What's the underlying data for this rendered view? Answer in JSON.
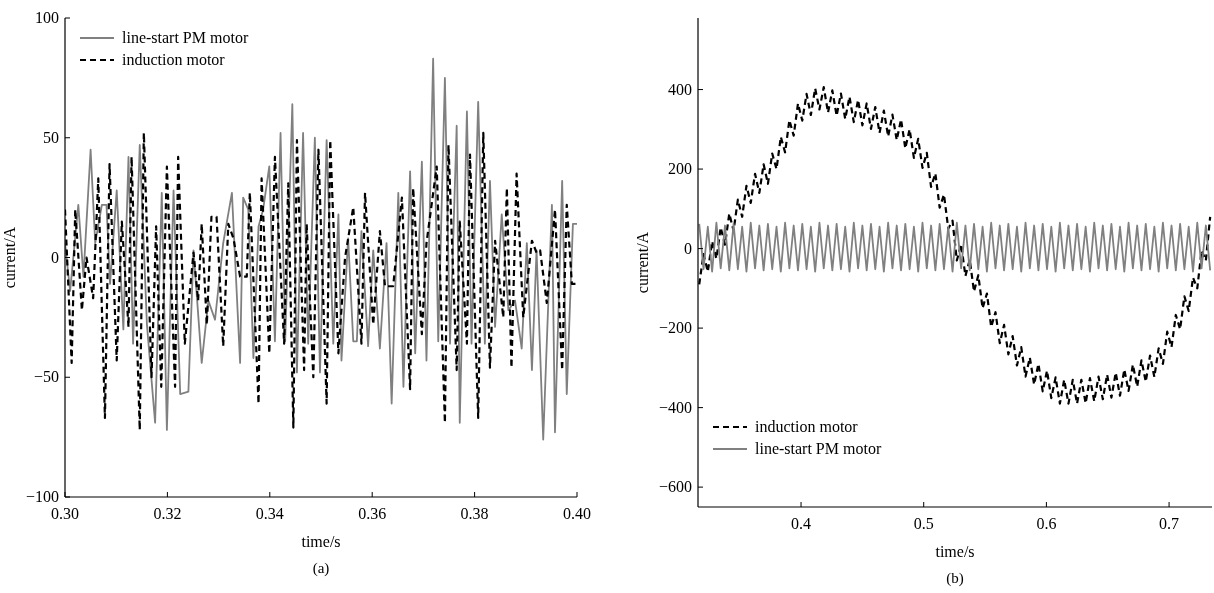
{
  "chart_data": [
    {
      "type": "line",
      "xlabel": "time/s",
      "ylabel": "current/A",
      "annotations": [
        "(a)"
      ],
      "xlim": [
        0.3,
        0.4
      ],
      "ylim": [
        -100,
        100
      ],
      "xticks": [
        {
          "value": 0.3,
          "label": "0.30"
        },
        {
          "value": 0.32,
          "label": "0.32"
        },
        {
          "value": 0.34,
          "label": "0.34"
        },
        {
          "value": 0.36,
          "label": "0.36"
        },
        {
          "value": 0.38,
          "label": "0.38"
        },
        {
          "value": 0.4,
          "label": "0.40"
        }
      ],
      "yticks": [
        -100,
        -50,
        0,
        50,
        100
      ],
      "legend": "top left",
      "grid": false,
      "series": [
        {
          "name": "line-start PM motor",
          "color": "#808080",
          "line_style": "solid",
          "x": [
            0.3,
            0.301,
            0.3026,
            0.3036,
            0.305,
            0.3059,
            0.3072,
            0.3081,
            0.3088,
            0.3101,
            0.3114,
            0.3124,
            0.3133,
            0.3146,
            0.316,
            0.3176,
            0.3189,
            0.3199,
            0.3212,
            0.3225,
            0.3241,
            0.3251,
            0.3267,
            0.328,
            0.3293,
            0.3309,
            0.3326,
            0.3342,
            0.3348,
            0.3358,
            0.3368,
            0.3378,
            0.3387,
            0.3399,
            0.341,
            0.3421,
            0.343,
            0.3444,
            0.3453,
            0.3465,
            0.3475,
            0.3488,
            0.3498,
            0.3511,
            0.3524,
            0.3534,
            0.354,
            0.3553,
            0.3563,
            0.357,
            0.3579,
            0.3592,
            0.3602,
            0.3615,
            0.3628,
            0.3638,
            0.3651,
            0.3661,
            0.3674,
            0.3684,
            0.3697,
            0.3706,
            0.3719,
            0.3729,
            0.3742,
            0.3752,
            0.3765,
            0.3771,
            0.3785,
            0.3794,
            0.3807,
            0.382,
            0.383,
            0.384,
            0.3853,
            0.3866,
            0.3879,
            0.3892,
            0.3902,
            0.3912,
            0.3921,
            0.3934,
            0.3951,
            0.3957,
            0.3971,
            0.398,
            0.3992,
            0.4
          ],
          "values": [
            6,
            -14,
            22,
            -8,
            45,
            6,
            22,
            22,
            -11,
            28,
            -30,
            42,
            -36,
            47,
            -28,
            -69,
            27,
            -72,
            28,
            -57,
            -56,
            3,
            -44,
            -18,
            -26,
            6,
            27,
            -44,
            25,
            20,
            -42,
            13,
            20,
            38,
            -35,
            52,
            -35,
            64,
            -48,
            52,
            -36,
            50,
            -48,
            49,
            -36,
            18,
            -43,
            8,
            -35,
            -35,
            11,
            -37,
            3,
            -38,
            6,
            -61,
            27,
            -54,
            36,
            -40,
            40,
            -43,
            83,
            -35,
            75,
            -36,
            55,
            -69,
            61,
            -36,
            65,
            -36,
            32,
            -29,
            18,
            -22,
            -18,
            -38,
            6,
            -47,
            3,
            -76,
            22,
            -73,
            32,
            -57,
            14,
            14
          ]
        },
        {
          "name": "induction motor",
          "color": "#000000",
          "line_style": "dashed",
          "x": [
            0.3,
            0.3013,
            0.302,
            0.3033,
            0.3042,
            0.3055,
            0.3065,
            0.3078,
            0.3087,
            0.3101,
            0.3111,
            0.3124,
            0.313,
            0.3146,
            0.3154,
            0.3169,
            0.3178,
            0.3188,
            0.3199,
            0.3215,
            0.3221,
            0.3234,
            0.3251,
            0.326,
            0.3267,
            0.3277,
            0.3286,
            0.3296,
            0.3309,
            0.3319,
            0.3329,
            0.3342,
            0.3355,
            0.3361,
            0.3378,
            0.3384,
            0.3399,
            0.341,
            0.3428,
            0.3436,
            0.3446,
            0.3453,
            0.3467,
            0.3472,
            0.3485,
            0.3495,
            0.3511,
            0.3518,
            0.3534,
            0.3547,
            0.3563,
            0.3579,
            0.3586,
            0.3602,
            0.3615,
            0.3625,
            0.3641,
            0.3658,
            0.3674,
            0.368,
            0.3697,
            0.3706,
            0.3726,
            0.3742,
            0.3749,
            0.3765,
            0.3771,
            0.3785,
            0.3791,
            0.3807,
            0.3817,
            0.383,
            0.384,
            0.3856,
            0.3863,
            0.3872,
            0.3882,
            0.3895,
            0.3912,
            0.3921,
            0.3928,
            0.3941,
            0.3957,
            0.3971,
            0.398,
            0.399,
            0.4
          ],
          "values": [
            20,
            -44,
            20,
            -22,
            0,
            -17,
            33,
            -67,
            39,
            -43,
            15,
            -29,
            42,
            -72,
            52,
            -50,
            13,
            -54,
            38,
            -54,
            42,
            -36,
            2,
            -18,
            14,
            -28,
            17,
            17,
            -37,
            14,
            8,
            -8,
            -8,
            27,
            -61,
            33,
            -40,
            42,
            -36,
            31,
            -71,
            49,
            -47,
            14,
            -50,
            45,
            -61,
            49,
            -40,
            0,
            21,
            -36,
            27,
            -28,
            11,
            -12,
            -12,
            25,
            -55,
            29,
            -32,
            6,
            38,
            -69,
            47,
            -47,
            15,
            -36,
            43,
            -67,
            52,
            -46,
            7,
            -25,
            29,
            -46,
            35,
            -25,
            7,
            2,
            3,
            -19,
            20,
            -47,
            22,
            -11,
            -11
          ]
        }
      ]
    },
    {
      "type": "line",
      "xlabel": "time/s",
      "ylabel": "current/A",
      "annotations": [
        "(b)"
      ],
      "xlim": [
        0.316,
        0.735
      ],
      "ylim": [
        -650,
        580
      ],
      "xticks": [
        0.4,
        0.5,
        0.6,
        0.7
      ],
      "yticks": [
        -600,
        -400,
        -200,
        0,
        200,
        400
      ],
      "legend": "bottom left",
      "grid": false,
      "x": [
        0.317,
        0.3205,
        0.324,
        0.3275,
        0.331,
        0.3345,
        0.338,
        0.3415,
        0.345,
        0.3485,
        0.352,
        0.3555,
        0.359,
        0.3625,
        0.366,
        0.3695,
        0.373,
        0.3765,
        0.38,
        0.3835,
        0.387,
        0.3905,
        0.394,
        0.3975,
        0.401,
        0.4045,
        0.408,
        0.4115,
        0.415,
        0.4185,
        0.422,
        0.4255,
        0.429,
        0.4325,
        0.436,
        0.4395,
        0.443,
        0.4465,
        0.45,
        0.4535,
        0.457,
        0.4605,
        0.464,
        0.4675,
        0.471,
        0.4745,
        0.478,
        0.4815,
        0.485,
        0.4885,
        0.492,
        0.4955,
        0.499,
        0.5025,
        0.506,
        0.5095,
        0.513,
        0.5165,
        0.52,
        0.5235,
        0.527,
        0.5305,
        0.534,
        0.5375,
        0.541,
        0.5445,
        0.548,
        0.5515,
        0.555,
        0.5585,
        0.562,
        0.5655,
        0.569,
        0.5725,
        0.576,
        0.5795,
        0.583,
        0.5865,
        0.59,
        0.5935,
        0.597,
        0.6005,
        0.604,
        0.6075,
        0.611,
        0.6145,
        0.618,
        0.6215,
        0.625,
        0.6285,
        0.632,
        0.6355,
        0.639,
        0.6425,
        0.646,
        0.6495,
        0.653,
        0.6565,
        0.66,
        0.6635,
        0.667,
        0.6705,
        0.674,
        0.6775,
        0.681,
        0.6845,
        0.688,
        0.6915,
        0.695,
        0.6985,
        0.702,
        0.7055,
        0.709,
        0.7125,
        0.716,
        0.7195,
        0.723,
        0.7265,
        0.73,
        0.7335
      ],
      "series": [
        {
          "name": "induction motor",
          "color": "#000000",
          "line_style": "dashed",
          "values": [
            -90,
            -14,
            -58,
            18,
            -25,
            53,
            10,
            88,
            45,
            123,
            80,
            158,
            115,
            188,
            140,
            212,
            163,
            239,
            200,
            281,
            242,
            323,
            284,
            365,
            322,
            389,
            336,
            403,
            350,
            406,
            342,
            398,
            334,
            390,
            326,
            382,
            318,
            374,
            310,
            365,
            301,
            356,
            291,
            347,
            282,
            337,
            273,
            325,
            252,
            300,
            228,
            276,
            203,
            241,
            155,
            189,
            103,
            136,
            50,
            70,
            -30,
            11,
            -69,
            -28,
            -108,
            -67,
            -150,
            -113,
            -197,
            -160,
            -238,
            -192,
            -266,
            -220,
            -294,
            -248,
            -322,
            -274,
            -342,
            -290,
            -359,
            -307,
            -376,
            -324,
            -390,
            -330,
            -390,
            -330,
            -390,
            -330,
            -389,
            -326,
            -384,
            -322,
            -379,
            -317,
            -375,
            -312,
            -370,
            -304,
            -358,
            -292,
            -347,
            -281,
            -335,
            -269,
            -323,
            -251,
            -290,
            -209,
            -248,
            -167,
            -203,
            -120,
            -157,
            -73,
            -100,
            -5,
            -30,
            80
          ]
        },
        {
          "name": "line-start PM motor",
          "color": "#808080",
          "line_style": "solid",
          "values": [
            62,
            -52,
            55,
            -58,
            65,
            -50,
            58,
            -55,
            62,
            -52,
            55,
            -58,
            65,
            -50,
            58,
            -55,
            62,
            -52,
            55,
            -58,
            65,
            -50,
            58,
            -55,
            62,
            -52,
            55,
            -58,
            65,
            -50,
            58,
            -55,
            62,
            -52,
            55,
            -58,
            65,
            -50,
            58,
            -55,
            62,
            -52,
            55,
            -58,
            65,
            -50,
            58,
            -55,
            62,
            -52,
            55,
            -58,
            65,
            -50,
            58,
            -55,
            62,
            -52,
            55,
            -58,
            65,
            -50,
            58,
            -55,
            62,
            -52,
            55,
            -58,
            65,
            -50,
            58,
            -55,
            62,
            -52,
            55,
            -58,
            65,
            -50,
            58,
            -55,
            62,
            -52,
            55,
            -58,
            65,
            -50,
            58,
            -55,
            62,
            -52,
            55,
            -58,
            65,
            -50,
            58,
            -55,
            62,
            -52,
            55,
            -58,
            65,
            -50,
            58,
            -55,
            62,
            -52,
            55,
            -58,
            65,
            -50,
            58,
            -55,
            62,
            -52,
            55,
            -58,
            65,
            -50,
            58,
            -55
          ]
        }
      ]
    }
  ]
}
